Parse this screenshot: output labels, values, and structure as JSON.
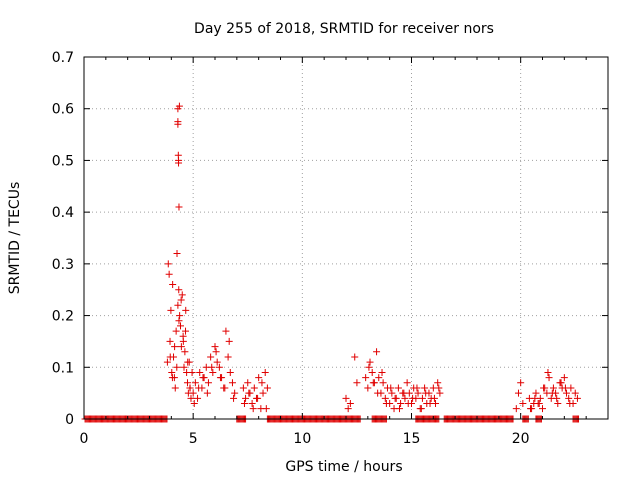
{
  "chart_data": {
    "type": "scatter",
    "title": "Day 255 of 2018, SRMTID for receiver nors",
    "xlabel": "GPS time / hours",
    "ylabel": "SRMTID / TECUs",
    "xlim": [
      0,
      24
    ],
    "ylim": [
      0,
      0.7
    ],
    "x_ticks": [
      0,
      5,
      10,
      15,
      20
    ],
    "y_ticks": [
      0,
      0.1,
      0.2,
      0.3,
      0.4,
      0.5,
      0.6,
      0.7
    ],
    "x_tick_labels": [
      "0",
      "5",
      "10",
      "15",
      "20"
    ],
    "y_tick_labels": [
      "0",
      "0.1",
      "0.2",
      "0.3",
      "0.4",
      "0.5",
      "0.6",
      "0.7"
    ],
    "grid": true,
    "marker": "+",
    "color": "#e00000",
    "zero_segments": [
      [
        0.05,
        3.8
      ],
      [
        7.0,
        7.4
      ],
      [
        8.4,
        12.7
      ],
      [
        13.2,
        13.9
      ],
      [
        15.2,
        16.3
      ],
      [
        16.5,
        19.7
      ],
      [
        20.1,
        20.4
      ],
      [
        20.7,
        21.0
      ],
      [
        22.4,
        22.7
      ]
    ],
    "series": [
      {
        "name": "nors",
        "x": [
          3.82,
          3.86,
          3.9,
          3.94,
          3.98,
          4.02,
          4.06,
          4.1,
          4.14,
          4.18,
          4.22,
          4.26,
          4.3,
          4.34,
          4.38,
          4.42,
          4.46,
          4.5,
          4.54,
          4.58,
          4.62,
          4.66,
          4.7,
          4.74,
          4.78,
          4.82,
          4.86,
          4.9,
          3.95,
          4.05,
          4.15,
          4.25,
          4.35,
          4.45,
          4.55,
          4.65,
          4.75,
          4.85,
          4.95,
          4.3,
          4.3,
          4.32,
          4.33,
          4.35,
          4.37,
          4.3,
          4.33,
          5.0,
          5.1,
          5.2,
          5.3,
          5.4,
          5.5,
          5.6,
          5.7,
          5.8,
          5.9,
          6.0,
          6.1,
          6.2,
          6.3,
          6.4,
          6.5,
          6.6,
          6.7,
          6.8,
          6.9,
          5.05,
          5.25,
          5.45,
          5.65,
          5.85,
          6.05,
          6.25,
          6.45,
          6.65,
          6.85,
          7.3,
          7.4,
          7.5,
          7.6,
          7.7,
          7.8,
          7.9,
          8.0,
          8.1,
          8.2,
          8.3,
          8.4,
          7.35,
          7.55,
          7.75,
          7.95,
          8.15,
          8.35,
          12.0,
          12.1,
          12.2,
          12.4,
          12.5,
          12.9,
          13.0,
          13.1,
          13.2,
          13.3,
          13.4,
          13.5,
          13.6,
          13.7,
          13.8,
          13.9,
          14.0,
          14.1,
          14.2,
          14.3,
          14.4,
          14.5,
          14.6,
          14.7,
          14.8,
          14.9,
          15.0,
          15.1,
          15.2,
          15.3,
          15.4,
          15.5,
          15.6,
          15.7,
          15.8,
          15.9,
          16.0,
          16.1,
          16.2,
          16.3,
          13.05,
          13.25,
          13.45,
          13.65,
          13.85,
          14.05,
          14.25,
          14.45,
          14.65,
          14.85,
          15.05,
          15.25,
          15.45,
          15.65,
          15.85,
          16.05,
          16.25,
          19.8,
          19.9,
          20.0,
          20.1,
          20.4,
          20.5,
          20.6,
          20.7,
          20.8,
          20.9,
          21.0,
          21.1,
          21.2,
          21.3,
          21.4,
          21.5,
          21.6,
          21.7,
          21.8,
          21.9,
          22.0,
          22.1,
          22.2,
          22.3,
          22.4,
          22.5,
          22.6,
          20.45,
          20.65,
          20.85,
          21.05,
          21.25,
          21.45,
          21.65,
          21.85,
          22.05,
          22.25
        ],
        "y": [
          0.11,
          0.3,
          0.28,
          0.15,
          0.21,
          0.09,
          0.26,
          0.12,
          0.08,
          0.06,
          0.17,
          0.32,
          0.22,
          0.25,
          0.2,
          0.18,
          0.14,
          0.24,
          0.16,
          0.1,
          0.13,
          0.21,
          0.09,
          0.07,
          0.05,
          0.11,
          0.06,
          0.04,
          0.12,
          0.08,
          0.14,
          0.1,
          0.19,
          0.23,
          0.15,
          0.17,
          0.11,
          0.06,
          0.09,
          0.6,
          0.575,
          0.51,
          0.495,
          0.41,
          0.605,
          0.57,
          0.5,
          0.05,
          0.07,
          0.04,
          0.09,
          0.06,
          0.08,
          0.1,
          0.07,
          0.12,
          0.09,
          0.14,
          0.11,
          0.1,
          0.08,
          0.06,
          0.17,
          0.12,
          0.09,
          0.07,
          0.05,
          0.03,
          0.06,
          0.08,
          0.05,
          0.1,
          0.13,
          0.08,
          0.06,
          0.15,
          0.04,
          0.06,
          0.04,
          0.07,
          0.05,
          0.03,
          0.06,
          0.04,
          0.08,
          0.02,
          0.05,
          0.09,
          0.06,
          0.03,
          0.05,
          0.02,
          0.04,
          0.07,
          0.02,
          0.04,
          0.02,
          0.03,
          0.12,
          0.07,
          0.08,
          0.06,
          0.11,
          0.09,
          0.07,
          0.13,
          0.08,
          0.05,
          0.07,
          0.04,
          0.06,
          0.03,
          0.05,
          0.02,
          0.04,
          0.06,
          0.03,
          0.05,
          0.04,
          0.07,
          0.05,
          0.03,
          0.06,
          0.04,
          0.05,
          0.02,
          0.04,
          0.06,
          0.03,
          0.05,
          0.04,
          0.06,
          0.03,
          0.07,
          0.05,
          0.1,
          0.07,
          0.05,
          0.09,
          0.03,
          0.06,
          0.04,
          0.02,
          0.05,
          0.03,
          0.04,
          0.06,
          0.02,
          0.05,
          0.03,
          0.04,
          0.06,
          0.02,
          0.05,
          0.07,
          0.03,
          0.04,
          0.02,
          0.03,
          0.05,
          0.03,
          0.04,
          0.02,
          0.06,
          0.05,
          0.08,
          0.04,
          0.06,
          0.05,
          0.03,
          0.07,
          0.06,
          0.08,
          0.05,
          0.04,
          0.06,
          0.03,
          0.05,
          0.04,
          0.02,
          0.04,
          0.03,
          0.06,
          0.09,
          0.05,
          0.04,
          0.07,
          0.06,
          0.03
        ]
      }
    ]
  }
}
